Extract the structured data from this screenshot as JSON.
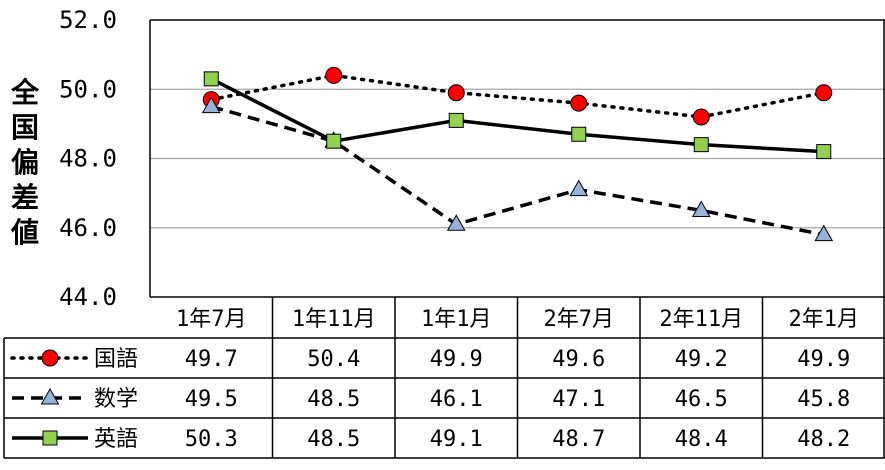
{
  "chart_data": {
    "type": "line",
    "ylabel": "全国偏差値",
    "ylim": [
      44.0,
      52.0
    ],
    "yticks": [
      "52.0",
      "50.0",
      "48.0",
      "46.0",
      "44.0"
    ],
    "ytick_values": [
      52,
      50,
      48,
      46,
      44
    ],
    "grid": true,
    "categories": [
      "1年7月",
      "1年11月",
      "1年1月",
      "2年7月",
      "2年11月",
      "2年1月"
    ],
    "series": [
      {
        "name": "国語",
        "values": [
          49.7,
          50.4,
          49.9,
          49.6,
          49.2,
          49.9
        ],
        "value_labels": [
          "49.7",
          "50.4",
          "49.9",
          "49.6",
          "49.2",
          "49.9"
        ],
        "line_style": "dotted",
        "marker": "circle",
        "color": "#ff0000"
      },
      {
        "name": "数学",
        "values": [
          49.5,
          48.5,
          46.1,
          47.1,
          46.5,
          45.8
        ],
        "value_labels": [
          "49.5",
          "48.5",
          "46.1",
          "47.1",
          "46.5",
          "45.8"
        ],
        "line_style": "dashed",
        "marker": "triangle",
        "color": "#95b3d7"
      },
      {
        "name": "英語",
        "values": [
          50.3,
          48.5,
          49.1,
          48.7,
          48.4,
          48.2
        ],
        "value_labels": [
          "50.3",
          "48.5",
          "49.1",
          "48.7",
          "48.4",
          "48.2"
        ],
        "line_style": "solid",
        "marker": "square",
        "color": "#92d050"
      }
    ]
  }
}
